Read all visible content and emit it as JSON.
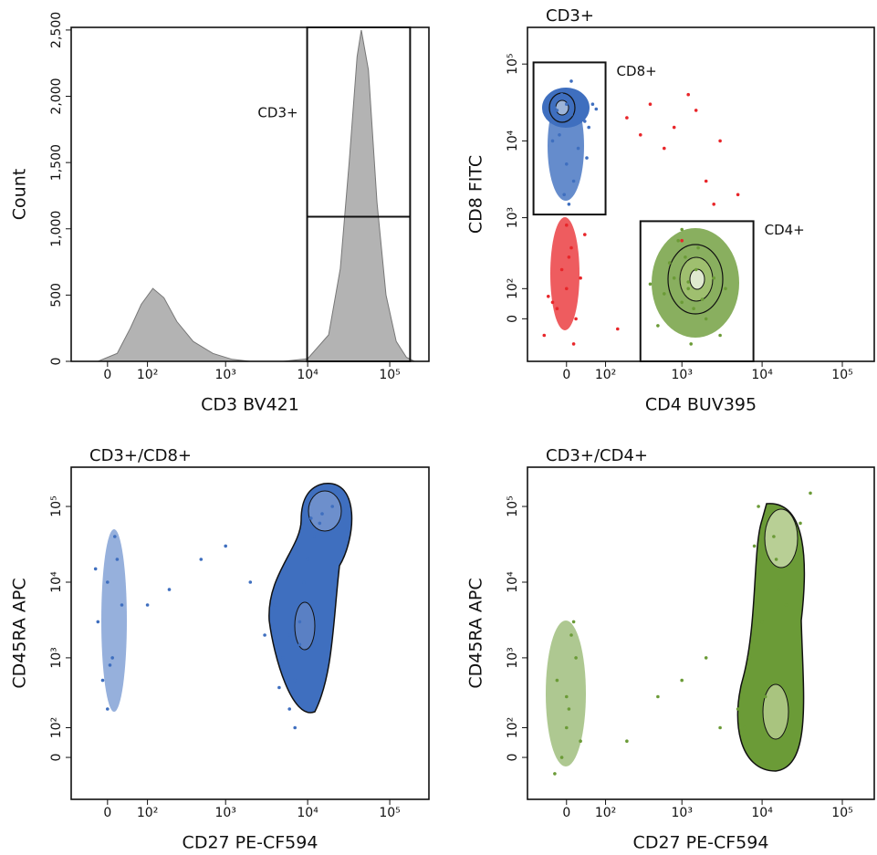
{
  "chart_data": [
    {
      "type": "area",
      "xlabel": "CD3 BV421",
      "ylabel": "Count",
      "xscale": "biexponential",
      "yscale": "linear",
      "color": "#b3b3b3",
      "x": [
        -20,
        20,
        50,
        80,
        120,
        170,
        250,
        400,
        700,
        1200,
        2000,
        5000,
        10000,
        18000,
        25000,
        32000,
        40000,
        45000,
        55000,
        70000,
        90000,
        120000,
        160000,
        200000
      ],
      "values": [
        0,
        60,
        250,
        430,
        550,
        480,
        300,
        150,
        60,
        15,
        0,
        0,
        20,
        200,
        700,
        1500,
        2300,
        2500,
        2200,
        1200,
        500,
        150,
        30,
        0
      ],
      "xlim": [
        -88,
        300000
      ],
      "ylim": [
        0,
        2520
      ],
      "xticks": [
        0,
        {
          "value": 100,
          "label": "10²"
        },
        {
          "value": 1000,
          "label": "10³"
        },
        {
          "value": 10000,
          "label": "10⁴"
        },
        {
          "value": 100000,
          "label": "10⁵"
        }
      ],
      "yticks": [
        0,
        500,
        {
          "value": 1000,
          "label": "1,000"
        },
        {
          "value": 1500,
          "label": "1,500"
        },
        {
          "value": 2000,
          "label": "2,000"
        },
        {
          "value": 2500,
          "label": "2,500"
        }
      ],
      "gates": [
        {
          "label": "CD3+",
          "x": [
            9860,
            177000
          ],
          "y": [
            0,
            2520
          ],
          "hline": 1091
        }
      ]
    },
    {
      "type": "scatter",
      "title": "CD3+",
      "xlabel": "CD4 BUV395",
      "ylabel": "CD8 FITC",
      "xscale": "biexponential",
      "yscale": "biexponential",
      "xlim": [
        -100,
        250000
      ],
      "ylim": [
        -160,
        300000
      ],
      "xticks": [
        0,
        {
          "value": 100,
          "label": "10²"
        },
        {
          "value": 1000,
          "label": "10³"
        },
        {
          "value": 10000,
          "label": "10⁴"
        },
        {
          "value": 100000,
          "label": "10⁵"
        }
      ],
      "yticks": [
        0,
        {
          "value": 100,
          "label": "10²"
        },
        {
          "value": 1000,
          "label": "10³"
        },
        {
          "value": 10000,
          "label": "10⁴"
        },
        {
          "value": 100000,
          "label": "10⁵"
        }
      ],
      "series": [
        {
          "color": "#e8262a",
          "x": [
            -30,
            0,
            20,
            -10,
            10,
            40,
            -50,
            0,
            30,
            -20,
            5,
            15,
            200,
            400,
            800,
            1500,
            3000,
            2000,
            1200,
            600,
            5000,
            150,
            1000,
            2500,
            300,
            -40
          ],
          "y": [
            50,
            100,
            0,
            200,
            400,
            600,
            -50,
            800,
            150,
            30,
            300,
            -80,
            20000,
            30000,
            15000,
            25000,
            10000,
            3000,
            40000,
            8000,
            2000,
            -30,
            500,
            1500,
            12000,
            70
          ]
        },
        {
          "color": "#3f6fbf",
          "x": [
            -40,
            -20,
            0,
            10,
            30,
            50,
            -30,
            0,
            20,
            -10,
            40,
            60,
            -50,
            15,
            -5,
            25,
            70,
            0,
            -15,
            35,
            5,
            45,
            -25,
            10
          ],
          "y": [
            20000,
            25000,
            30000,
            22000,
            28000,
            15000,
            10000,
            5000,
            35000,
            40000,
            18000,
            30000,
            24000,
            3000,
            2000,
            8000,
            26000,
            45000,
            12000,
            20000,
            1500,
            6000,
            27000,
            60000
          ]
        },
        {
          "color": "#6b9b37",
          "x": [
            1200,
            1000,
            800,
            1500,
            2000,
            600,
            400,
            3000,
            1100,
            900,
            1300,
            1800,
            700,
            2500,
            1000,
            1400,
            500,
            1600,
            1200,
            3500
          ],
          "y": [
            100,
            50,
            150,
            200,
            0,
            80,
            120,
            -50,
            300,
            500,
            -80,
            60,
            250,
            150,
            700,
            30,
            -20,
            400,
            130,
            100
          ]
        }
      ],
      "gates": [
        {
          "label": "CD8+",
          "x": [
            -80,
            100
          ],
          "y": [
            1100,
            105000
          ]
        },
        {
          "label": "CD4+",
          "x": [
            300,
            7800
          ],
          "y": [
            -160,
            900
          ]
        }
      ]
    },
    {
      "type": "scatter",
      "title": "CD3+/CD8+",
      "xlabel": "CD27 PE-CF594",
      "ylabel": "CD45RA APC",
      "xscale": "biexponential",
      "yscale": "biexponential",
      "xlim": [
        -88,
        300000
      ],
      "ylim": [
        -160,
        330000
      ],
      "xticks": [
        0,
        {
          "value": 100,
          "label": "10²"
        },
        {
          "value": 1000,
          "label": "10³"
        },
        {
          "value": 10000,
          "label": "10⁴"
        },
        {
          "value": 100000,
          "label": "10⁵"
        }
      ],
      "yticks": [
        0,
        {
          "value": 100,
          "label": "10²"
        },
        {
          "value": 1000,
          "label": "10³"
        },
        {
          "value": 10000,
          "label": "10⁴"
        },
        {
          "value": 100000,
          "label": "10⁵"
        }
      ],
      "series": [
        {
          "color": "#3f6fbf",
          "x": [
            0,
            -20,
            20,
            10,
            -10,
            30,
            0,
            15,
            -25,
            5,
            6000,
            8000,
            7000,
            5000,
            9000,
            12000,
            15000,
            14000,
            10000,
            4000,
            3000,
            6000,
            7000,
            20000,
            30000,
            2000,
            500,
            200,
            100,
            1000,
            8000,
            11000,
            4500
          ],
          "y": [
            10000,
            3000,
            20000,
            1000,
            500,
            5000,
            200,
            40000,
            15000,
            800,
            2000,
            3000,
            500,
            1000,
            10000,
            40000,
            80000,
            60000,
            20000,
            5000,
            2000,
            200,
            100,
            100000,
            50000,
            10000,
            20000,
            8000,
            5000,
            30000,
            1500,
            70000,
            400
          ]
        }
      ]
    },
    {
      "type": "scatter",
      "title": "CD3+/CD4+",
      "xlabel": "CD27 PE-CF594",
      "ylabel": "CD45RA APC",
      "xscale": "biexponential",
      "yscale": "biexponential",
      "xlim": [
        -100,
        250000
      ],
      "ylim": [
        -160,
        330000
      ],
      "xticks": [
        0,
        {
          "value": 100,
          "label": "10²"
        },
        {
          "value": 1000,
          "label": "10³"
        },
        {
          "value": 10000,
          "label": "10⁴"
        },
        {
          "value": 100000,
          "label": "10⁵"
        }
      ],
      "yticks": [
        0,
        {
          "value": 100,
          "label": "10²"
        },
        {
          "value": 1000,
          "label": "10³"
        },
        {
          "value": 10000,
          "label": "10⁴"
        },
        {
          "value": 100000,
          "label": "10⁵"
        }
      ],
      "series": [
        {
          "color": "#6b9b37",
          "x": [
            0,
            -20,
            20,
            10,
            -10,
            30,
            0,
            15,
            -25,
            5,
            10000,
            8000,
            12000,
            9000,
            15000,
            7000,
            11000,
            20000,
            6000,
            13000,
            10000,
            9000,
            14000,
            30000,
            5000,
            3000,
            1000,
            500,
            200,
            2000,
            16000,
            40000
          ],
          "y": [
            100,
            500,
            1000,
            2000,
            0,
            50,
            300,
            3000,
            -50,
            200,
            50000,
            30000,
            80000,
            10000,
            20000,
            1000,
            300,
            5000,
            100,
            50,
            3000,
            100000,
            40000,
            60000,
            200,
            100,
            500,
            300,
            50,
            1000,
            8000,
            150000
          ]
        }
      ]
    }
  ]
}
